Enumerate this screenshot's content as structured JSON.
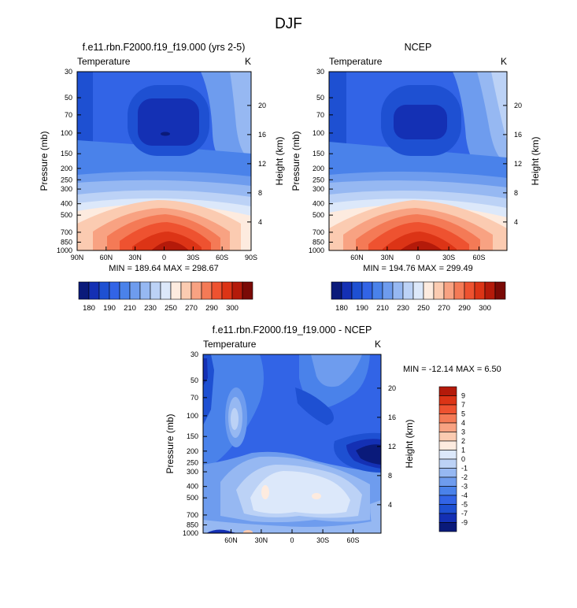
{
  "title": "DJF",
  "panels": [
    {
      "title": "f.e11.rbn.F2000.f19_f19.000 (yrs 2-5)",
      "left_label": "Temperature",
      "right_label": "K",
      "ylabel": "Pressure (mb)",
      "ylabel_right": "Height (km)",
      "minmax": "MIN = 189.64   MAX = 298.67",
      "xticks": [
        "90N",
        "60N",
        "30N",
        "0",
        "30S",
        "60S",
        "90S"
      ]
    },
    {
      "title": "NCEP",
      "left_label": "Temperature",
      "right_label": "K",
      "ylabel": "Pressure (mb)",
      "ylabel_right": "Height (km)",
      "minmax": "MIN = 194.76   MAX = 299.49",
      "xticks": [
        "60N",
        "30N",
        "0",
        "30S",
        "60S"
      ]
    },
    {
      "title": "f.e11.rbn.F2000.f19_f19.000 - NCEP",
      "left_label": "Temperature",
      "right_label": "K",
      "ylabel": "Pressure (mb)",
      "ylabel_right": "Height (km)",
      "minmax": "MIN = -12.14   MAX =   6.50",
      "xticks": [
        "60N",
        "30N",
        "0",
        "30S",
        "60S"
      ]
    }
  ],
  "pressure_ticks": [
    "30",
    "50",
    "70",
    "100",
    "150",
    "200",
    "250",
    "300",
    "400",
    "500",
    "700",
    "850",
    "1000"
  ],
  "height_ticks": [
    "20",
    "16",
    "12",
    "8",
    "4"
  ],
  "temp_colorbar": {
    "colors": [
      "#0a1a7a",
      "#1430b4",
      "#1e50d2",
      "#3264e6",
      "#4a82ea",
      "#6e9cee",
      "#96b8f2",
      "#bcd2f6",
      "#dce8fa",
      "#fdebdf",
      "#fbcbb1",
      "#f8a282",
      "#f47a56",
      "#ee5230",
      "#dc3416",
      "#b41a0a",
      "#7a0a06"
    ],
    "labels": [
      "180",
      "190",
      "210",
      "230",
      "250",
      "270",
      "290",
      "300"
    ]
  },
  "diff_colorbar": {
    "colors": [
      "#0a1a7a",
      "#1430b4",
      "#1e50d2",
      "#3264e6",
      "#4a82ea",
      "#6e9cee",
      "#96b8f2",
      "#bcd2f6",
      "#dce8fa",
      "#fdebdf",
      "#fbcbb1",
      "#f8a282",
      "#f47a56",
      "#ee5230",
      "#dc3416",
      "#b41a0a"
    ],
    "labels": [
      "-9",
      "-7",
      "-5",
      "-4",
      "-3",
      "-2",
      "-1",
      "0",
      "1",
      "2",
      "3",
      "4",
      "5",
      "7",
      "9"
    ]
  },
  "chart_data": [
    {
      "type": "heatmap",
      "title": "f.e11.rbn.F2000.f19_f19.000 (yrs 2-5)",
      "xlabel": "",
      "ylabel": "Pressure (mb)",
      "x_range": [
        "90N",
        "90S"
      ],
      "y_range_mb": [
        1000,
        30
      ],
      "min": 189.64,
      "max": 298.67
    },
    {
      "type": "heatmap",
      "title": "NCEP",
      "xlabel": "",
      "ylabel": "Pressure (mb)",
      "y_range_mb": [
        1000,
        30
      ],
      "min": 194.76,
      "max": 299.49
    },
    {
      "type": "heatmap",
      "title": "f.e11.rbn.F2000.f19_f19.000 - NCEP",
      "xlabel": "",
      "ylabel": "Pressure (mb)",
      "y_range_mb": [
        1000,
        30
      ],
      "min": -12.14,
      "max": 6.5
    }
  ]
}
